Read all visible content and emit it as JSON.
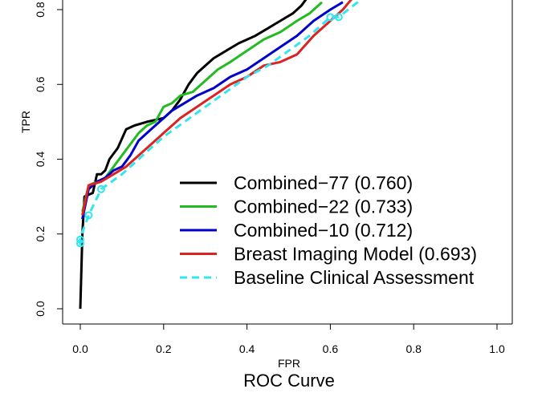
{
  "chart_data": {
    "type": "line",
    "title": "ROC Curve",
    "xlabel": "FPR",
    "ylabel": "TPR",
    "xlim": [
      0,
      1
    ],
    "ylim": [
      0,
      0.8
    ],
    "xticks": [
      "0.0",
      "0.2",
      "0.4",
      "0.6",
      "0.8",
      "1.0"
    ],
    "yticks": [
      "0.0",
      "0.2",
      "0.4",
      "0.6",
      "0.8"
    ],
    "legend_position": "center-right",
    "series": [
      {
        "name": "Combined−77 (0.760)",
        "color": "#000000",
        "dash": "solid",
        "points": [
          [
            0,
            0
          ],
          [
            0.005,
            0.2
          ],
          [
            0.01,
            0.3
          ],
          [
            0.03,
            0.31
          ],
          [
            0.04,
            0.36
          ],
          [
            0.05,
            0.36
          ],
          [
            0.06,
            0.37
          ],
          [
            0.07,
            0.4
          ],
          [
            0.09,
            0.43
          ],
          [
            0.11,
            0.48
          ],
          [
            0.13,
            0.49
          ],
          [
            0.16,
            0.5
          ],
          [
            0.2,
            0.51
          ],
          [
            0.22,
            0.53
          ],
          [
            0.24,
            0.56
          ],
          [
            0.26,
            0.6
          ],
          [
            0.28,
            0.63
          ],
          [
            0.3,
            0.65
          ],
          [
            0.32,
            0.67
          ],
          [
            0.35,
            0.69
          ],
          [
            0.38,
            0.71
          ],
          [
            0.42,
            0.73
          ],
          [
            0.45,
            0.75
          ],
          [
            0.48,
            0.77
          ],
          [
            0.51,
            0.79
          ],
          [
            0.53,
            0.81
          ],
          [
            0.55,
            0.84
          ]
        ]
      },
      {
        "name": "Combined−22 (0.733)",
        "color": "#22bb22",
        "dash": "solid",
        "points": [
          [
            0.005,
            0.26
          ],
          [
            0.02,
            0.33
          ],
          [
            0.04,
            0.34
          ],
          [
            0.06,
            0.35
          ],
          [
            0.08,
            0.38
          ],
          [
            0.1,
            0.41
          ],
          [
            0.12,
            0.44
          ],
          [
            0.14,
            0.47
          ],
          [
            0.16,
            0.49
          ],
          [
            0.18,
            0.5
          ],
          [
            0.2,
            0.54
          ],
          [
            0.22,
            0.55
          ],
          [
            0.24,
            0.57
          ],
          [
            0.27,
            0.58
          ],
          [
            0.3,
            0.61
          ],
          [
            0.33,
            0.64
          ],
          [
            0.36,
            0.66
          ],
          [
            0.4,
            0.69
          ],
          [
            0.44,
            0.72
          ],
          [
            0.48,
            0.74
          ],
          [
            0.52,
            0.77
          ],
          [
            0.55,
            0.79
          ],
          [
            0.58,
            0.82
          ]
        ]
      },
      {
        "name": "Combined−10 (0.712)",
        "color": "#0000cc",
        "dash": "solid",
        "points": [
          [
            0.005,
            0.24
          ],
          [
            0.02,
            0.32
          ],
          [
            0.04,
            0.34
          ],
          [
            0.06,
            0.35
          ],
          [
            0.08,
            0.37
          ],
          [
            0.1,
            0.38
          ],
          [
            0.12,
            0.41
          ],
          [
            0.14,
            0.45
          ],
          [
            0.16,
            0.47
          ],
          [
            0.18,
            0.49
          ],
          [
            0.2,
            0.51
          ],
          [
            0.22,
            0.53
          ],
          [
            0.25,
            0.55
          ],
          [
            0.28,
            0.57
          ],
          [
            0.32,
            0.59
          ],
          [
            0.36,
            0.62
          ],
          [
            0.4,
            0.64
          ],
          [
            0.44,
            0.67
          ],
          [
            0.48,
            0.7
          ],
          [
            0.52,
            0.73
          ],
          [
            0.56,
            0.77
          ],
          [
            0.6,
            0.8
          ],
          [
            0.63,
            0.82
          ]
        ]
      },
      {
        "name": "Breast Imaging Model (0.693)",
        "color": "#dd2222",
        "dash": "solid",
        "points": [
          [
            0.005,
            0.25
          ],
          [
            0.02,
            0.33
          ],
          [
            0.05,
            0.34
          ],
          [
            0.08,
            0.36
          ],
          [
            0.11,
            0.38
          ],
          [
            0.14,
            0.41
          ],
          [
            0.17,
            0.44
          ],
          [
            0.2,
            0.47
          ],
          [
            0.24,
            0.51
          ],
          [
            0.28,
            0.54
          ],
          [
            0.32,
            0.57
          ],
          [
            0.36,
            0.6
          ],
          [
            0.4,
            0.62
          ],
          [
            0.44,
            0.65
          ],
          [
            0.48,
            0.66
          ],
          [
            0.52,
            0.68
          ],
          [
            0.56,
            0.73
          ],
          [
            0.6,
            0.77
          ],
          [
            0.63,
            0.8
          ],
          [
            0.66,
            0.84
          ]
        ]
      },
      {
        "name": "Baseline Clinical Assessment",
        "color": "#33e5ee",
        "dash": "dashed",
        "markers": [
          [
            0.0,
            0.175
          ],
          [
            0.0,
            0.185
          ],
          [
            0.02,
            0.25
          ],
          [
            0.05,
            0.32
          ],
          [
            0.6,
            0.78
          ],
          [
            0.62,
            0.78
          ]
        ],
        "points": [
          [
            0.0,
            0.17
          ],
          [
            0.0,
            0.19
          ],
          [
            0.02,
            0.25
          ],
          [
            0.05,
            0.32
          ],
          [
            0.1,
            0.36
          ],
          [
            0.15,
            0.41
          ],
          [
            0.2,
            0.46
          ],
          [
            0.25,
            0.5
          ],
          [
            0.3,
            0.54
          ],
          [
            0.35,
            0.58
          ],
          [
            0.4,
            0.62
          ],
          [
            0.45,
            0.65
          ],
          [
            0.5,
            0.69
          ],
          [
            0.55,
            0.73
          ],
          [
            0.6,
            0.78
          ],
          [
            0.62,
            0.78
          ],
          [
            0.7,
            0.85
          ]
        ]
      }
    ]
  }
}
